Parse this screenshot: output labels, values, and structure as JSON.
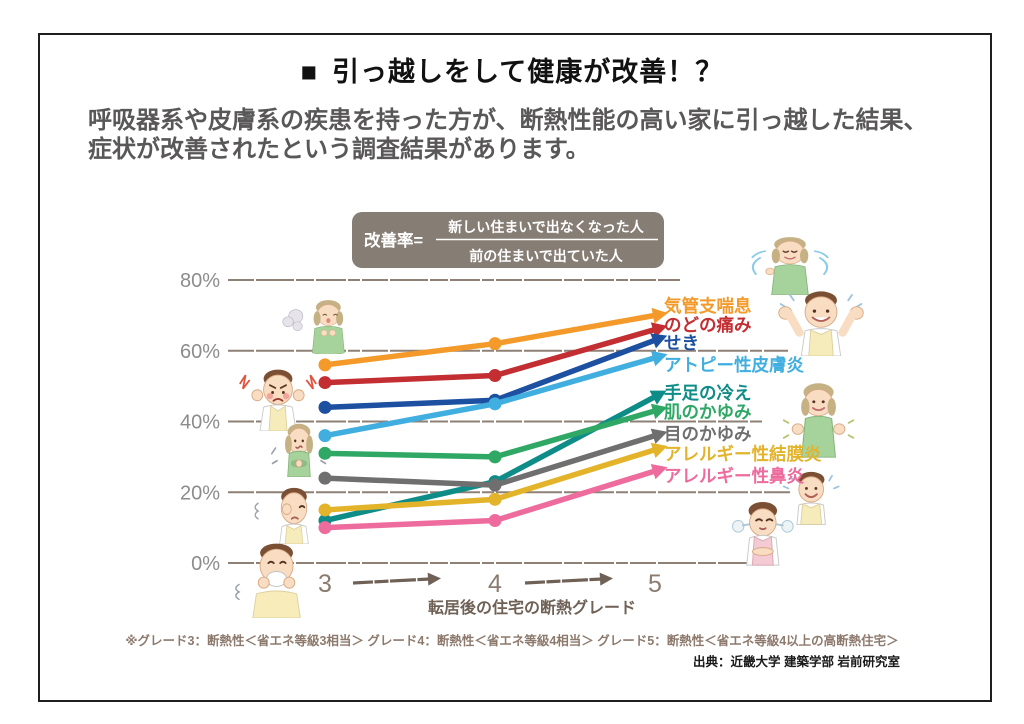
{
  "slide": {
    "title_bullet": "■",
    "title": "引っ越しをして健康が改善！？",
    "body_line1": "呼吸器系や皮膚系の疾患を持った方が、断熱性能の高い家に引っ越した結果、",
    "body_line2": "症状が改善されたという調査結果があります。",
    "footnote": "※グレード3：断熱性＜省エネ等級3相当＞ グレード4：断熱性＜省エネ等級4相当＞ グレード5：断熱性＜省エネ等級4以上の高断熱住宅＞",
    "source": "出典：近畿大学 建築学部 岩前研究室"
  },
  "formula": {
    "label": "改善率=",
    "numerator": "新しい住まいで出なくなった人",
    "denominator": "前の住まいで出ていた人",
    "box_color": "#867d74",
    "text_color": "#ffffff"
  },
  "chart_data": {
    "type": "line",
    "title": "",
    "xlabel": "転居後の住宅の断熱グレード",
    "ylabel": "",
    "x": [
      3,
      4,
      5
    ],
    "x_tick_labels": [
      "3",
      "4",
      "5"
    ],
    "y_ticks": [
      "80%",
      "60%",
      "40%",
      "20%",
      "0%"
    ],
    "y_tick_values": [
      80,
      60,
      40,
      20,
      0
    ],
    "ylim": [
      0,
      80
    ],
    "grid": true,
    "legend_position": "right",
    "series": [
      {
        "name": "気管支喘息",
        "color": "#f39a2b",
        "values": [
          56,
          62,
          70
        ]
      },
      {
        "name": "のどの痛み",
        "color": "#c22e31",
        "values": [
          51,
          53,
          66
        ]
      },
      {
        "name": "せき",
        "color": "#1d50a0",
        "values": [
          44,
          46,
          63
        ]
      },
      {
        "name": "アトピー性皮膚炎",
        "color": "#41aee0",
        "values": [
          36,
          45,
          58
        ]
      },
      {
        "name": "手足の冷え",
        "color": "#0e8c88",
        "values": [
          12,
          23,
          47
        ]
      },
      {
        "name": "肌のかゆみ",
        "color": "#2fa865",
        "values": [
          31,
          30,
          43
        ]
      },
      {
        "name": "目のかゆみ",
        "color": "#6f6f6f",
        "values": [
          24,
          22,
          36
        ]
      },
      {
        "name": "アレルギー性結膜炎",
        "color": "#e3b32a",
        "values": [
          15,
          18,
          32
        ]
      },
      {
        "name": "アレルギー性鼻炎",
        "color": "#ee6b9e",
        "values": [
          10,
          12,
          26
        ]
      }
    ]
  }
}
